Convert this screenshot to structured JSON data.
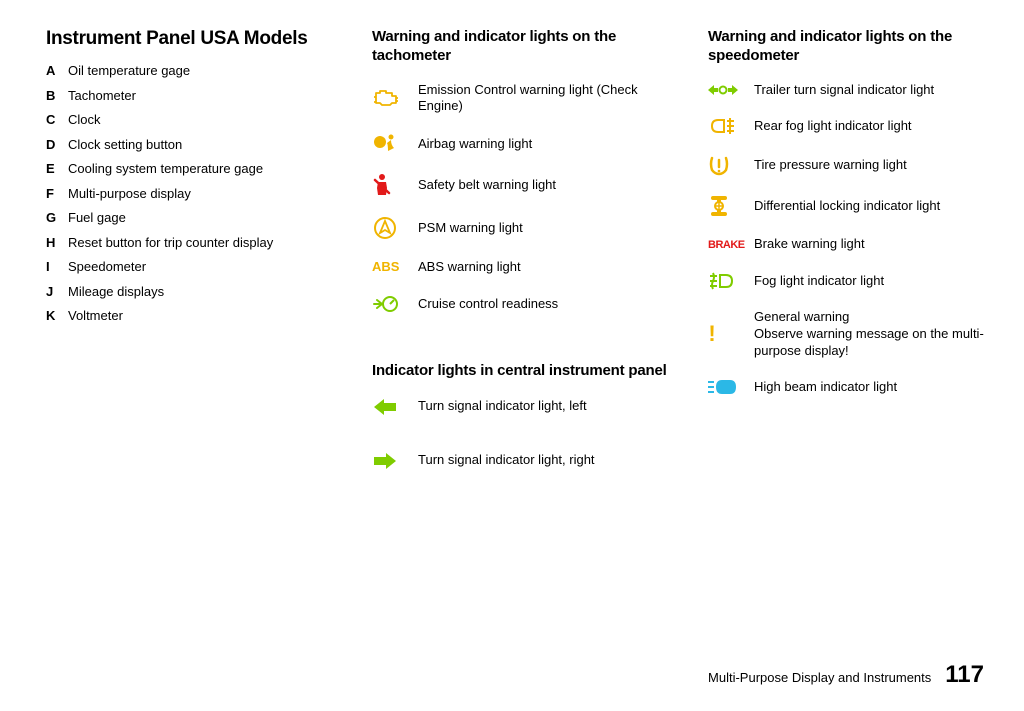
{
  "colors": {
    "text": "#000000",
    "amber": "#f0b400",
    "red": "#e21a1a",
    "green": "#7fcc00",
    "cyan": "#2bb8e6",
    "bg": "#ffffff"
  },
  "col1": {
    "title": "Instrument Panel USA Models",
    "items": [
      {
        "letter": "A",
        "label": "Oil temperature gage"
      },
      {
        "letter": "B",
        "label": "Tachometer"
      },
      {
        "letter": "C",
        "label": "Clock"
      },
      {
        "letter": "D",
        "label": "Clock setting button"
      },
      {
        "letter": "E",
        "label": "Cooling system temperature gage"
      },
      {
        "letter": "F",
        "label": "Multi-purpose display"
      },
      {
        "letter": "G",
        "label": "Fuel gage"
      },
      {
        "letter": "H",
        "label": "Reset button for trip counter display"
      },
      {
        "letter": "I",
        "label": "Speedometer"
      },
      {
        "letter": "J",
        "label": "Mileage displays"
      },
      {
        "letter": "K",
        "label": "Voltmeter"
      }
    ]
  },
  "col2": {
    "section1": {
      "title": "Warning and indicator lights on the tachometer",
      "items": [
        {
          "icon": "engine",
          "color": "amber",
          "label": "Emission Control warning light (Check Engine)"
        },
        {
          "icon": "airbag",
          "color": "amber",
          "label": "Airbag warning light"
        },
        {
          "icon": "seatbelt",
          "color": "red",
          "label": "Safety belt warning light"
        },
        {
          "icon": "psm",
          "color": "amber",
          "label": "PSM warning light"
        },
        {
          "icon": "abs",
          "color": "amber",
          "label": "ABS warning light"
        },
        {
          "icon": "cruise",
          "color": "green",
          "label": "Cruise control readiness"
        }
      ]
    },
    "section2": {
      "title": "Indicator lights in central instrument panel",
      "items": [
        {
          "icon": "arrow-left",
          "color": "green",
          "label": "Turn signal indicator light, left"
        },
        {
          "icon": "arrow-right",
          "color": "green",
          "label": "Turn signal indicator light, right"
        }
      ]
    }
  },
  "col3": {
    "title": "Warning and indicator lights on the speedometer",
    "items": [
      {
        "icon": "trailer-turn",
        "color": "green",
        "label": "Trailer turn signal indicator light"
      },
      {
        "icon": "rear-fog",
        "color": "amber",
        "label": "Rear fog light indicator light"
      },
      {
        "icon": "tpms",
        "color": "amber",
        "label": "Tire pressure warning light"
      },
      {
        "icon": "diff-lock",
        "color": "amber",
        "label": "Differential locking indicator light"
      },
      {
        "icon": "brake",
        "color": "red",
        "label": "Brake warning light"
      },
      {
        "icon": "fog",
        "color": "green",
        "label": "Fog light indicator light"
      },
      {
        "icon": "warning-excl",
        "color": "amber",
        "label": "General warning\nObserve warning message on the multi-purpose display!"
      },
      {
        "icon": "high-beam",
        "color": "cyan",
        "label": "High beam indicator light"
      }
    ]
  },
  "footer": {
    "text": "Multi-Purpose Display and Instruments",
    "page": "117"
  }
}
